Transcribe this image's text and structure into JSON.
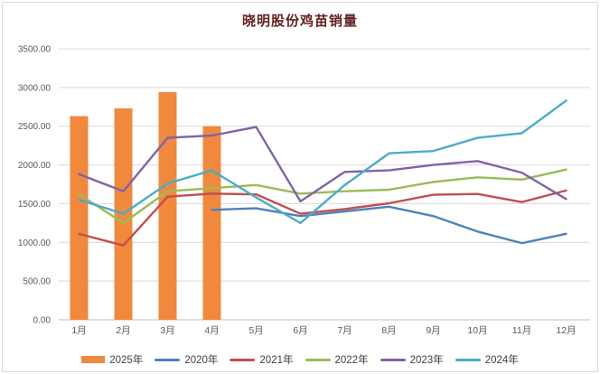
{
  "window": {
    "background": "#FFFFFF",
    "frame_border_color": "#D9D9D9"
  },
  "chart_data": {
    "type": "combo",
    "title": "晓明股份鸡苗销量",
    "title_color": "#632423",
    "categories": [
      "1月",
      "2月",
      "3月",
      "4月",
      "5月",
      "6月",
      "7月",
      "8月",
      "9月",
      "10月",
      "11月",
      "12月"
    ],
    "series": [
      {
        "name": "2025年",
        "type": "bar",
        "color": "#F0883E",
        "values": [
          2630,
          2730,
          2940,
          2500,
          null,
          null,
          null,
          null,
          null,
          null,
          null,
          null
        ]
      },
      {
        "name": "2020年",
        "type": "line",
        "color": "#4F81BD",
        "values": [
          null,
          null,
          null,
          1420,
          1440,
          1340,
          1400,
          1460,
          1340,
          1140,
          990,
          1110
        ]
      },
      {
        "name": "2021年",
        "type": "line",
        "color": "#C0504D",
        "values": [
          1110,
          960,
          1590,
          1630,
          1620,
          1370,
          1430,
          1505,
          1615,
          1625,
          1520,
          1670
        ]
      },
      {
        "name": "2022年",
        "type": "line",
        "color": "#9BBB59",
        "values": [
          1620,
          1250,
          1660,
          1700,
          1740,
          1630,
          1660,
          1680,
          1780,
          1840,
          1810,
          1940
        ]
      },
      {
        "name": "2023年",
        "type": "line",
        "color": "#8064A2",
        "values": [
          1880,
          1660,
          2350,
          2380,
          2490,
          1530,
          1910,
          1930,
          2000,
          2050,
          1900,
          1560
        ]
      },
      {
        "name": "2024年",
        "type": "line",
        "color": "#4BACC6",
        "values": [
          1550,
          1370,
          1760,
          1930,
          1580,
          1250,
          1740,
          2150,
          2180,
          2350,
          2410,
          2830
        ]
      }
    ],
    "y_axis": {
      "min": 0,
      "max": 3500,
      "step": 500,
      "tick_labels": [
        "0.00",
        "500.00",
        "1000.00",
        "1500.00",
        "2000.00",
        "2500.00",
        "3000.00",
        "3500.00"
      ]
    },
    "x_axis": {
      "labels": [
        "1月",
        "2月",
        "3月",
        "4月",
        "5月",
        "6月",
        "7月",
        "8月",
        "9月",
        "10月",
        "11月",
        "12月"
      ]
    },
    "grid": true,
    "legend_position": "bottom",
    "axis_text_color": "#595959",
    "legend_text_color": "#404040",
    "gridline_color": "#D9D9D9",
    "axis_line_color": "#BFBFBF"
  }
}
